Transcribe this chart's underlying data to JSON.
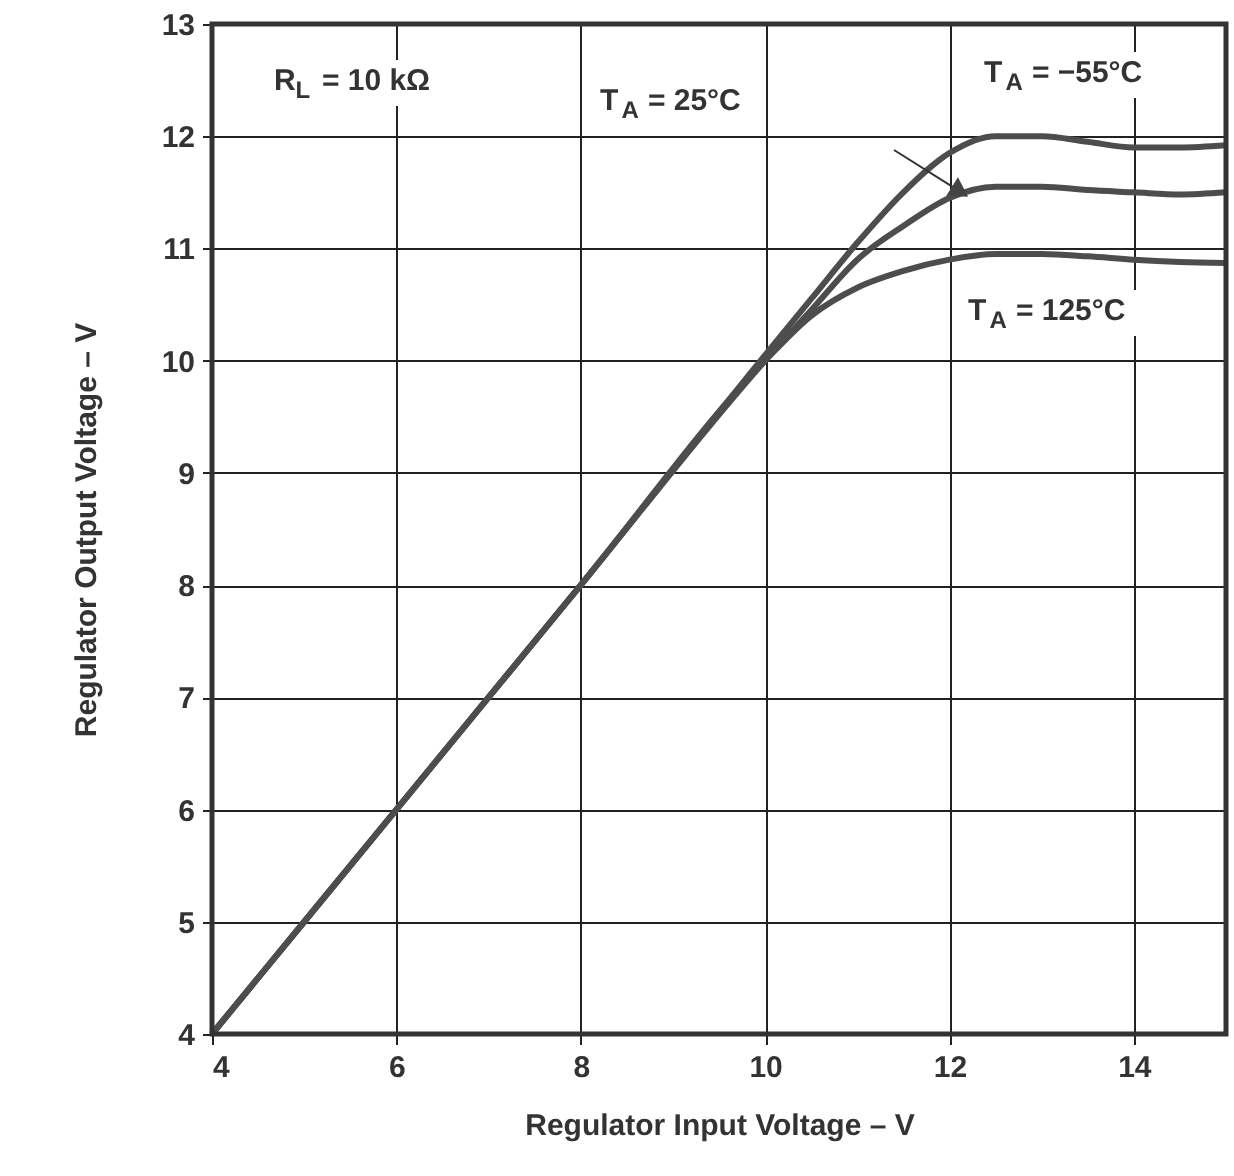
{
  "chart_data": {
    "type": "line",
    "xlabel": "Regulator Input Voltage – V",
    "ylabel": "Regulator Output Voltage – V",
    "xlim": [
      4,
      15
    ],
    "ylim": [
      4,
      13
    ],
    "xticks": [
      4,
      6,
      8,
      10,
      12,
      14
    ],
    "yticks": [
      4,
      5,
      6,
      7,
      8,
      9,
      10,
      11,
      12,
      13
    ],
    "grid": true,
    "marker": "none",
    "line_style": "solid",
    "series": [
      {
        "color": "#4d4d4d",
        "x": [
          4,
          6,
          8,
          10,
          10.5,
          11,
          11.5,
          12,
          12.5,
          13,
          13.5,
          14,
          14.5,
          15
        ],
        "values": [
          4,
          6,
          8,
          10.05,
          10.55,
          11.05,
          11.5,
          11.85,
          12.0,
          12.0,
          11.95,
          11.9,
          11.9,
          11.92
        ]
      },
      {
        "color": "#4d4d4d",
        "x": [
          4,
          6,
          8,
          10,
          10.5,
          11,
          11.5,
          12,
          12.5,
          13,
          13.5,
          14,
          14.5,
          15
        ],
        "values": [
          4,
          6,
          8,
          10.0,
          10.45,
          10.9,
          11.2,
          11.45,
          11.55,
          11.55,
          11.52,
          11.5,
          11.48,
          11.5
        ]
      },
      {
        "color": "#4d4d4d",
        "x": [
          4,
          6,
          8,
          10,
          10.5,
          11,
          11.5,
          12,
          12.5,
          13,
          13.5,
          14,
          14.5,
          15
        ],
        "values": [
          4,
          6,
          8,
          10.0,
          10.4,
          10.65,
          10.8,
          10.9,
          10.95,
          10.95,
          10.93,
          10.9,
          10.88,
          10.87
        ]
      }
    ],
    "annotations": [
      "R$_{L}$ = 10 kΩ",
      "T$_{A}$ = −55°C",
      "T$_{A}$ = 25°C",
      "T$_{A}$ = 125°C"
    ]
  }
}
